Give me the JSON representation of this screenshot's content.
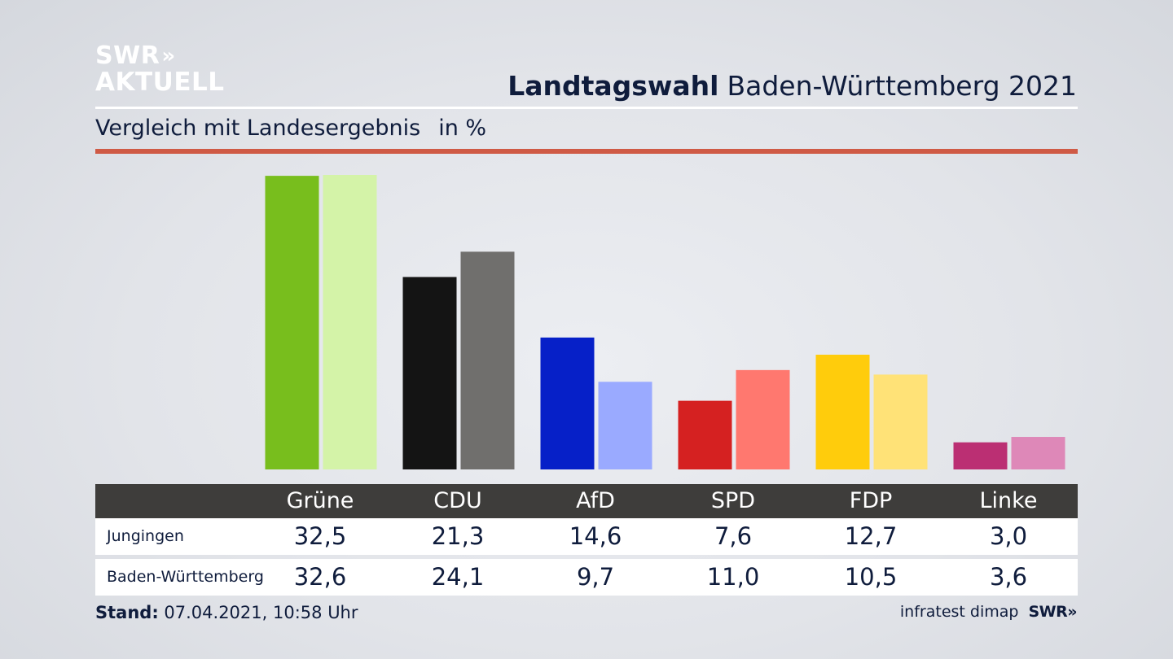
{
  "logo": {
    "line1": "SWR",
    "arrows": "»",
    "line2": "AKTUELL"
  },
  "header": {
    "title_bold": "Landtagswahl",
    "title_rest": "Baden-Württemberg 2021"
  },
  "subtitle": {
    "text": "Vergleich mit Landesergebnis",
    "unit": "in %"
  },
  "chart_data": {
    "type": "bar",
    "title": "Landtagswahl Baden-Württemberg 2021",
    "subtitle": "Vergleich mit Landesergebnis",
    "unit": "in %",
    "categories": [
      "Grüne",
      "CDU",
      "AfD",
      "SPD",
      "FDP",
      "Linke"
    ],
    "series": [
      {
        "name": "Jungingen",
        "values": [
          32.5,
          21.3,
          14.6,
          7.6,
          12.7,
          3.0
        ],
        "colors": [
          "#78be1d",
          "#141414",
          "#0620c8",
          "#d52121",
          "#ffcc0c",
          "#bb2f73"
        ]
      },
      {
        "name": "Baden-Württemberg",
        "values": [
          32.6,
          24.1,
          9.7,
          11.0,
          10.5,
          3.6
        ],
        "colors": [
          "#d4f3a8",
          "#706f6d",
          "#9aaaff",
          "#ff786f",
          "#ffe277",
          "#de88b8"
        ]
      }
    ],
    "ylim": [
      0,
      32.6
    ],
    "grid": false
  },
  "table": {
    "headers": [
      "Grüne",
      "CDU",
      "AfD",
      "SPD",
      "FDP",
      "Linke"
    ],
    "rows": [
      {
        "label": "Jungingen",
        "values": [
          "32,5",
          "21,3",
          "14,6",
          "7,6",
          "12,7",
          "3,0"
        ]
      },
      {
        "label": "Baden-Württemberg",
        "values": [
          "32,6",
          "24,1",
          "9,7",
          "11,0",
          "10,5",
          "3,6"
        ]
      }
    ]
  },
  "footer": {
    "stand_label": "Stand:",
    "stand_value": "07.04.2021, 10:58 Uhr",
    "source": "infratest dimap",
    "brand": "SWR»"
  }
}
